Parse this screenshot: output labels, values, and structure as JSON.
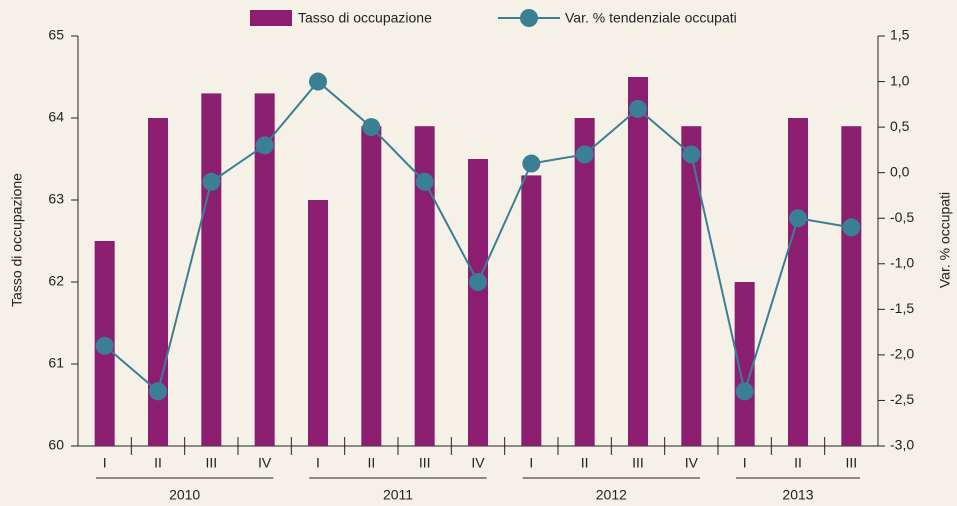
{
  "chart_data": {
    "type": "combo",
    "ylabel": "Tasso di occupazione",
    "y2label": "Var. % occupati",
    "groups": [
      {
        "label": "2010",
        "categories": [
          "I",
          "II",
          "III",
          "IV"
        ]
      },
      {
        "label": "2011",
        "categories": [
          "I",
          "II",
          "III",
          "IV"
        ]
      },
      {
        "label": "2012",
        "categories": [
          "I",
          "II",
          "III",
          "IV"
        ]
      },
      {
        "label": "2013",
        "categories": [
          "I",
          "II",
          "III"
        ]
      }
    ],
    "series": [
      {
        "name": "Tasso di occupazione",
        "type": "bar",
        "color": "#8b1e6e",
        "values": [
          62.5,
          64.0,
          64.3,
          64.3,
          63.0,
          63.9,
          63.9,
          63.5,
          63.3,
          64.0,
          64.5,
          63.9,
          62.0,
          64.0,
          63.9
        ]
      },
      {
        "name": "Var. % tendenziale occupati",
        "type": "line",
        "axis": "y2",
        "color": "#3b7f95",
        "values": [
          -1.9,
          -2.4,
          -0.1,
          0.3,
          1.0,
          0.5,
          -0.1,
          -1.2,
          0.1,
          0.2,
          0.7,
          0.2,
          -2.4,
          -0.5,
          -0.6
        ]
      }
    ],
    "ylim": [
      60,
      65
    ],
    "yticks": [
      60,
      61,
      62,
      63,
      64,
      65
    ],
    "y2lim": [
      -3.0,
      1.5
    ],
    "y2ticks": [
      {
        "value": -3.0,
        "label": "-3,0"
      },
      {
        "value": -2.5,
        "label": "-2,5"
      },
      {
        "value": -2.0,
        "label": "-2,0"
      },
      {
        "value": -1.5,
        "label": "-1,5"
      },
      {
        "value": -1.0,
        "label": "-1,0"
      },
      {
        "value": -0.5,
        "label": "-0,5"
      },
      {
        "value": 0.0,
        "label": "0,0"
      },
      {
        "value": 0.5,
        "label": "0,5"
      },
      {
        "value": 1.0,
        "label": "1,0"
      },
      {
        "value": 1.5,
        "label": "1,5"
      }
    ],
    "grid": false,
    "legend": "top"
  }
}
